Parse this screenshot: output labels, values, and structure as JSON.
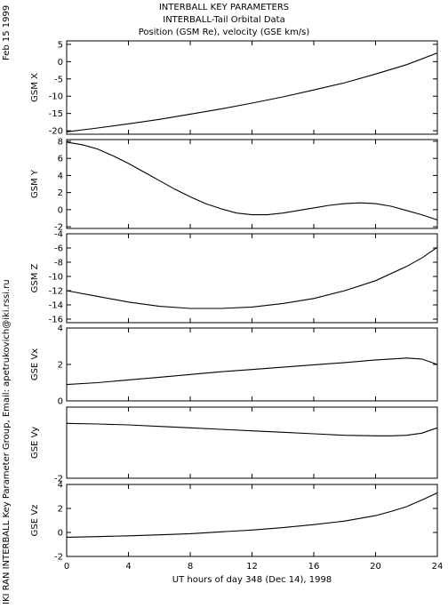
{
  "header": {
    "title": "INTERBALL KEY PARAMETERS",
    "subtitle": "INTERBALL-Tail Orbital Data",
    "units": "Position (GSM Re), velocity (GSE km/s)"
  },
  "side": {
    "date": "Feb 15 1999",
    "credit": "IKI RAN INTERBALL Key Parameter Group, Email: apetrukovich@iki.rssi.ru"
  },
  "xaxis": {
    "label": "UT hours of day 348 (Dec 14), 1998",
    "ticks": [
      0,
      4,
      8,
      12,
      16,
      20,
      24
    ],
    "range": [
      0,
      24
    ]
  },
  "chart_data": [
    {
      "type": "line",
      "ylabel": "GSM X",
      "ylim": [
        -21,
        6
      ],
      "yticks": [
        5,
        0,
        -5,
        -10,
        -15,
        -20
      ],
      "x": [
        0,
        2,
        4,
        6,
        8,
        10,
        12,
        14,
        16,
        18,
        20,
        22,
        24
      ],
      "values": [
        -20.3,
        -19.2,
        -18.0,
        -16.7,
        -15.2,
        -13.7,
        -12.0,
        -10.2,
        -8.2,
        -6.1,
        -3.6,
        -0.9,
        2.5
      ]
    },
    {
      "type": "line",
      "ylabel": "GSM Y",
      "ylim": [
        -2.2,
        8.2
      ],
      "yticks": [
        8,
        6,
        4,
        2,
        0,
        -2
      ],
      "x": [
        0,
        1,
        2,
        3,
        4,
        5,
        6,
        7,
        8,
        9,
        10,
        11,
        12,
        13,
        14,
        15,
        16,
        17,
        18,
        19,
        20,
        21,
        22,
        23,
        24
      ],
      "values": [
        7.9,
        7.6,
        7.1,
        6.3,
        5.4,
        4.4,
        3.4,
        2.4,
        1.5,
        0.7,
        0.1,
        -0.4,
        -0.6,
        -0.6,
        -0.4,
        -0.1,
        0.2,
        0.5,
        0.7,
        0.8,
        0.7,
        0.4,
        -0.1,
        -0.6,
        -1.2
      ]
    },
    {
      "type": "line",
      "ylabel": "GSM Z",
      "ylim": [
        -16.5,
        -4
      ],
      "yticks": [
        -4,
        -6,
        -8,
        -10,
        -12,
        -14,
        -16
      ],
      "x": [
        0,
        2,
        4,
        6,
        8,
        10,
        12,
        14,
        16,
        18,
        20,
        22,
        23,
        24
      ],
      "values": [
        -12.0,
        -12.8,
        -13.6,
        -14.2,
        -14.5,
        -14.5,
        -14.3,
        -13.8,
        -13.1,
        -12.0,
        -10.6,
        -8.6,
        -7.4,
        -5.9
      ]
    },
    {
      "type": "line",
      "ylabel": "GSE Vx",
      "ylim": [
        0,
        4
      ],
      "yticks": [
        4,
        2,
        0
      ],
      "x": [
        0,
        2,
        4,
        6,
        8,
        10,
        12,
        14,
        16,
        18,
        20,
        21,
        22,
        23,
        24
      ],
      "values": [
        0.9,
        1.0,
        1.15,
        1.3,
        1.45,
        1.6,
        1.72,
        1.85,
        1.98,
        2.1,
        2.25,
        2.3,
        2.35,
        2.3,
        2.0
      ]
    },
    {
      "type": "line",
      "ylabel": "GSE Vy",
      "ylim": [
        -2,
        0.4
      ],
      "yticks": [
        -2
      ],
      "x": [
        0,
        2,
        4,
        6,
        8,
        10,
        12,
        14,
        16,
        18,
        20,
        21,
        22,
        23,
        24
      ],
      "values": [
        -0.15,
        -0.17,
        -0.2,
        -0.25,
        -0.3,
        -0.35,
        -0.4,
        -0.45,
        -0.5,
        -0.55,
        -0.57,
        -0.57,
        -0.55,
        -0.48,
        -0.3
      ]
    },
    {
      "type": "line",
      "ylabel": "GSE Vz",
      "ylim": [
        -2,
        4
      ],
      "yticks": [
        4,
        2,
        0,
        -2
      ],
      "x": [
        0,
        2,
        4,
        6,
        8,
        10,
        12,
        14,
        16,
        18,
        20,
        21,
        22,
        23,
        24
      ],
      "values": [
        -0.4,
        -0.35,
        -0.28,
        -0.2,
        -0.1,
        0.05,
        0.2,
        0.4,
        0.65,
        0.95,
        1.4,
        1.75,
        2.15,
        2.7,
        3.3
      ]
    }
  ]
}
